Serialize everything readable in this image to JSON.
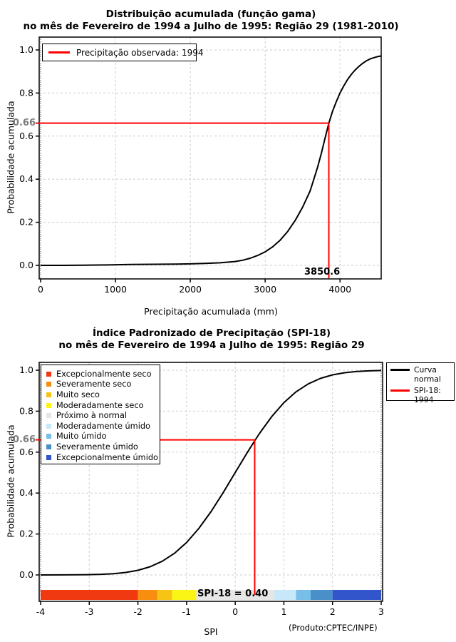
{
  "chart_data": [
    {
      "type": "line",
      "title": "Distribuição acumulada (função gama)",
      "subtitle": "no mês de Fevereiro de 1994 a Julho de 1995: Região 29 (1981-2010)",
      "xlabel": "Precipitação acumulada (mm)",
      "ylabel": "Probabilidade acumulada",
      "xlim": [
        0,
        4550
      ],
      "ylim": [
        0,
        1
      ],
      "grid": true,
      "x_tick_values": [
        0,
        1000,
        2000,
        3000,
        4000
      ],
      "x_tick_labels": [
        "0",
        "1000",
        "2000",
        "3000",
        "4000"
      ],
      "y_tick_values": [
        0,
        0.2,
        0.4,
        0.6,
        0.8,
        1.0
      ],
      "y_tick_labels": [
        "0.0",
        "0.2",
        "0.4",
        "0.6",
        "0.8",
        "1.0"
      ],
      "legend_position": "top-left",
      "legend": {
        "sample_color": "#FF0000",
        "label": "Precipitação observada: 1994"
      },
      "marker": {
        "x": 3850.6,
        "y": 0.66,
        "x_label": "3850.6",
        "y_label": "0.66",
        "color": "#FF0000"
      },
      "series": [
        {
          "name": "gamma-cdf",
          "color": "#000000",
          "points": [
            [
              0,
              0
            ],
            [
              300,
              0
            ],
            [
              600,
              0.001
            ],
            [
              900,
              0.002
            ],
            [
              1200,
              0.004
            ],
            [
              1500,
              0.005
            ],
            [
              1800,
              0.006
            ],
            [
              2000,
              0.007
            ],
            [
              2200,
              0.009
            ],
            [
              2400,
              0.012
            ],
            [
              2600,
              0.018
            ],
            [
              2700,
              0.024
            ],
            [
              2800,
              0.033
            ],
            [
              2900,
              0.046
            ],
            [
              3000,
              0.063
            ],
            [
              3100,
              0.086
            ],
            [
              3200,
              0.117
            ],
            [
              3300,
              0.157
            ],
            [
              3400,
              0.208
            ],
            [
              3500,
              0.27
            ],
            [
              3600,
              0.345
            ],
            [
              3650,
              0.4
            ],
            [
              3700,
              0.455
            ],
            [
              3750,
              0.52
            ],
            [
              3800,
              0.59
            ],
            [
              3850.6,
              0.66
            ],
            [
              3900,
              0.715
            ],
            [
              3950,
              0.76
            ],
            [
              4000,
              0.8
            ],
            [
              4050,
              0.833
            ],
            [
              4100,
              0.862
            ],
            [
              4150,
              0.886
            ],
            [
              4200,
              0.906
            ],
            [
              4250,
              0.923
            ],
            [
              4300,
              0.937
            ],
            [
              4350,
              0.949
            ],
            [
              4400,
              0.958
            ],
            [
              4450,
              0.964
            ],
            [
              4500,
              0.969
            ],
            [
              4550,
              0.972
            ]
          ]
        }
      ]
    },
    {
      "type": "line",
      "title": "Índice Padronizado de Precipitação (SPI-18)",
      "subtitle": "no mês de Fevereiro de 1994 a Julho de 1995: Região 29",
      "xlabel": "SPI",
      "ylabel": "Probabilidade acumulada",
      "xlim": [
        -4,
        3
      ],
      "ylim": [
        0,
        1
      ],
      "grid": true,
      "x_tick_values": [
        -4,
        -3,
        -2,
        -1,
        0,
        1,
        2,
        3
      ],
      "x_tick_labels": [
        "-4",
        "-3",
        "-2",
        "-1",
        "0",
        "1",
        "2",
        "3"
      ],
      "y_tick_values": [
        0,
        0.2,
        0.4,
        0.6,
        0.8,
        1.0
      ],
      "y_tick_labels": [
        "0.0",
        "0.2",
        "0.4",
        "0.6",
        "0.8",
        "1.0"
      ],
      "marker": {
        "x": 0.4,
        "y": 0.66,
        "annotation": "SPI-18 = 0.40",
        "y_label": "0.66",
        "color": "#FF0000"
      },
      "footnote": "(Produto:CPTEC/INPE)",
      "categories_legend": [
        {
          "label": "Excepcionalmente seco",
          "color": "#F03911"
        },
        {
          "label": "Severamente seco",
          "color": "#F78E10"
        },
        {
          "label": "Muito seco",
          "color": "#F7C315"
        },
        {
          "label": "Moderadamente seco",
          "color": "#FAF514"
        },
        {
          "label": "Próximo à normal",
          "color": "#E6E6E6"
        },
        {
          "label": "Moderadamente úmido",
          "color": "#C7E8F8"
        },
        {
          "label": "Muito úmido",
          "color": "#77BEE8"
        },
        {
          "label": "Severamente úmido",
          "color": "#4A90C8"
        },
        {
          "label": "Excepcionalmente úmido",
          "color": "#3355CC"
        }
      ],
      "curve_legend": [
        {
          "label": "Curva normal",
          "color": "#000000"
        },
        {
          "label": "SPI-18: 1994",
          "color": "#FF0000"
        }
      ],
      "colorbar": {
        "segments": [
          {
            "from": -4,
            "to": -2,
            "color": "#F03911"
          },
          {
            "from": -2,
            "to": -1.6,
            "color": "#F78E10"
          },
          {
            "from": -1.6,
            "to": -1.3,
            "color": "#F7C315"
          },
          {
            "from": -1.3,
            "to": -0.8,
            "color": "#FAF514"
          },
          {
            "from": -0.8,
            "to": 0.8,
            "color": "#E6E6E6"
          },
          {
            "from": 0.8,
            "to": 1.25,
            "color": "#C7E8F8"
          },
          {
            "from": 1.25,
            "to": 1.55,
            "color": "#77BEE8"
          },
          {
            "from": 1.55,
            "to": 2,
            "color": "#4A90C8"
          },
          {
            "from": 2,
            "to": 3,
            "color": "#3355CC"
          }
        ]
      },
      "series": [
        {
          "name": "normal-cdf",
          "color": "#000000",
          "points": [
            [
              -4,
              3e-05
            ],
            [
              -3.5,
              0.00023
            ],
            [
              -3,
              0.00135
            ],
            [
              -2.75,
              0.003
            ],
            [
              -2.5,
              0.0062
            ],
            [
              -2.25,
              0.0122
            ],
            [
              -2,
              0.0228
            ],
            [
              -1.75,
              0.0401
            ],
            [
              -1.5,
              0.0668
            ],
            [
              -1.25,
              0.1056
            ],
            [
              -1,
              0.1587
            ],
            [
              -0.75,
              0.2266
            ],
            [
              -0.5,
              0.3085
            ],
            [
              -0.25,
              0.4013
            ],
            [
              0,
              0.5
            ],
            [
              0.25,
              0.5987
            ],
            [
              0.4,
              0.6554
            ],
            [
              0.5,
              0.6915
            ],
            [
              0.75,
              0.7734
            ],
            [
              1,
              0.8413
            ],
            [
              1.25,
              0.8944
            ],
            [
              1.5,
              0.9332
            ],
            [
              1.75,
              0.9599
            ],
            [
              2,
              0.9772
            ],
            [
              2.25,
              0.9878
            ],
            [
              2.5,
              0.9938
            ],
            [
              2.75,
              0.997
            ],
            [
              3,
              0.9987
            ]
          ]
        }
      ]
    }
  ]
}
